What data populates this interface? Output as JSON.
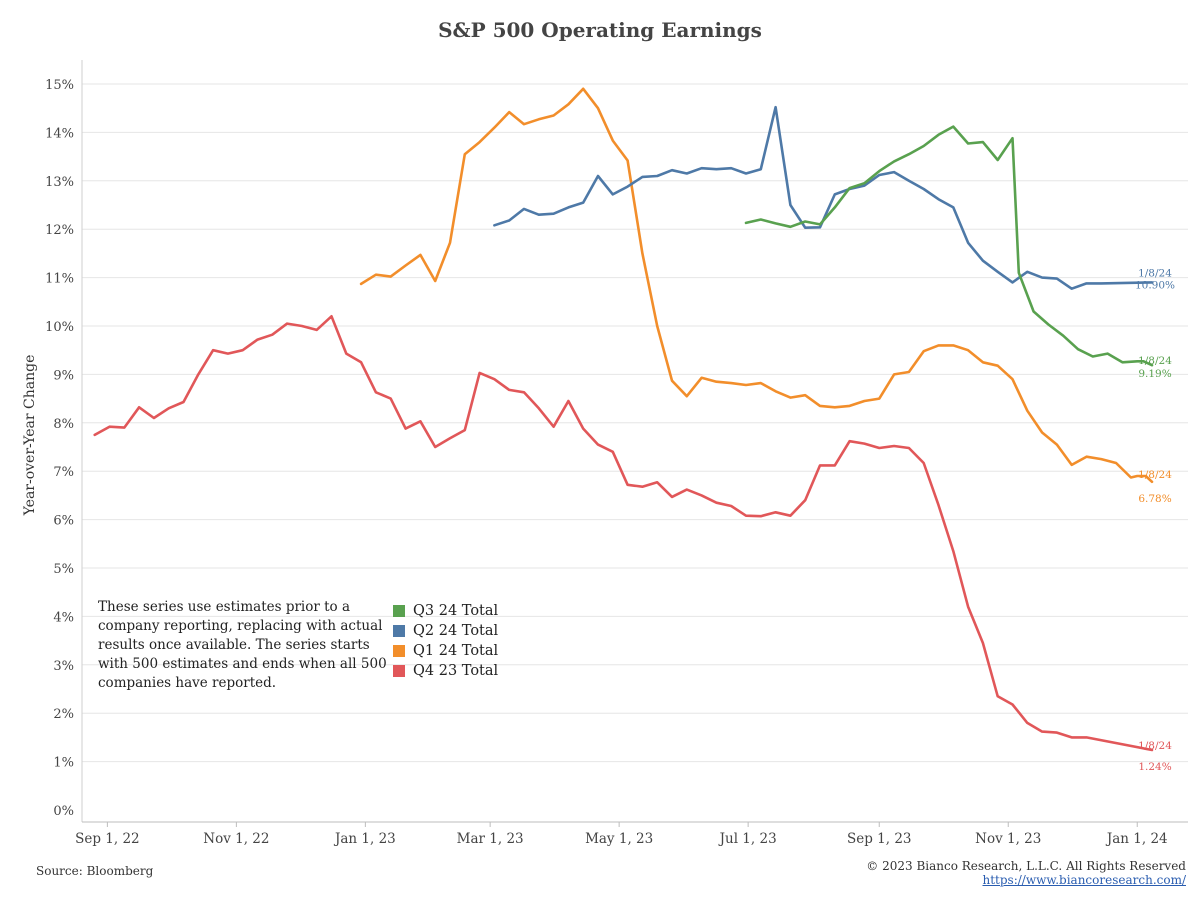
{
  "chart_data": {
    "type": "line",
    "title": "S&P 500 Operating Earnings",
    "ylabel": "Year-over-Year Change",
    "xlabel": "",
    "ylim": [
      0,
      15
    ],
    "xlim": [
      "2022-08-20",
      "2024-01-25"
    ],
    "y_ticks": [
      "0%",
      "1%",
      "2%",
      "3%",
      "4%",
      "5%",
      "6%",
      "7%",
      "8%",
      "9%",
      "10%",
      "11%",
      "12%",
      "13%",
      "14%",
      "15%"
    ],
    "x_ticks": [
      {
        "date": "2022-09-01",
        "label": "Sep 1, 22"
      },
      {
        "date": "2022-11-01",
        "label": "Nov 1, 22"
      },
      {
        "date": "2023-01-01",
        "label": "Jan 1, 23"
      },
      {
        "date": "2023-03-01",
        "label": "Mar 1, 23"
      },
      {
        "date": "2023-05-01",
        "label": "May 1, 23"
      },
      {
        "date": "2023-07-01",
        "label": "Jul 1, 23"
      },
      {
        "date": "2023-09-01",
        "label": "Sep 1, 23"
      },
      {
        "date": "2023-11-01",
        "label": "Nov 1, 23"
      },
      {
        "date": "2024-01-01",
        "label": "Jan 1, 24"
      }
    ],
    "grid": true,
    "series": [
      {
        "name": "Q3 24 Total",
        "color": "#59a14f",
        "end_label": {
          "date": "1/8/24",
          "value": "9.19%"
        },
        "points": [
          [
            "2023-06-30",
            12.13
          ],
          [
            "2023-07-07",
            12.2
          ],
          [
            "2023-07-14",
            12.12
          ],
          [
            "2023-07-21",
            12.05
          ],
          [
            "2023-07-28",
            12.16
          ],
          [
            "2023-08-04",
            12.1
          ],
          [
            "2023-08-11",
            12.45
          ],
          [
            "2023-08-18",
            12.85
          ],
          [
            "2023-08-25",
            12.95
          ],
          [
            "2023-09-01",
            13.2
          ],
          [
            "2023-09-08",
            13.4
          ],
          [
            "2023-09-15",
            13.55
          ],
          [
            "2023-09-22",
            13.72
          ],
          [
            "2023-09-29",
            13.95
          ],
          [
            "2023-10-06",
            14.12
          ],
          [
            "2023-10-13",
            13.77
          ],
          [
            "2023-10-20",
            13.8
          ],
          [
            "2023-10-27",
            13.43
          ],
          [
            "2023-11-03",
            13.88
          ],
          [
            "2023-11-06",
            11.1
          ],
          [
            "2023-11-13",
            10.3
          ],
          [
            "2023-11-20",
            10.03
          ],
          [
            "2023-11-27",
            9.8
          ],
          [
            "2023-12-04",
            9.52
          ],
          [
            "2023-12-11",
            9.37
          ],
          [
            "2023-12-18",
            9.43
          ],
          [
            "2023-12-25",
            9.25
          ],
          [
            "2024-01-01",
            9.27
          ],
          [
            "2024-01-04",
            9.27
          ],
          [
            "2024-01-08",
            9.19
          ]
        ]
      },
      {
        "name": "Q2 24 Total",
        "color": "#4e79a7",
        "end_label": {
          "date": "1/8/24",
          "value": "10.90%"
        },
        "points": [
          [
            "2023-03-03",
            12.08
          ],
          [
            "2023-03-10",
            12.18
          ],
          [
            "2023-03-17",
            12.42
          ],
          [
            "2023-03-24",
            12.3
          ],
          [
            "2023-03-31",
            12.32
          ],
          [
            "2023-04-07",
            12.45
          ],
          [
            "2023-04-14",
            12.55
          ],
          [
            "2023-04-21",
            13.1
          ],
          [
            "2023-04-28",
            12.72
          ],
          [
            "2023-05-05",
            12.88
          ],
          [
            "2023-05-12",
            13.08
          ],
          [
            "2023-05-19",
            13.1
          ],
          [
            "2023-05-26",
            13.22
          ],
          [
            "2023-06-02",
            13.15
          ],
          [
            "2023-06-09",
            13.26
          ],
          [
            "2023-06-16",
            13.24
          ],
          [
            "2023-06-23",
            13.26
          ],
          [
            "2023-06-30",
            13.15
          ],
          [
            "2023-07-07",
            13.24
          ],
          [
            "2023-07-14",
            14.52
          ],
          [
            "2023-07-21",
            12.5
          ],
          [
            "2023-07-28",
            12.03
          ],
          [
            "2023-08-04",
            12.04
          ],
          [
            "2023-08-11",
            12.72
          ],
          [
            "2023-08-18",
            12.83
          ],
          [
            "2023-08-25",
            12.9
          ],
          [
            "2023-09-01",
            13.12
          ],
          [
            "2023-09-08",
            13.18
          ],
          [
            "2023-09-15",
            13.0
          ],
          [
            "2023-09-22",
            12.83
          ],
          [
            "2023-09-29",
            12.62
          ],
          [
            "2023-10-06",
            12.45
          ],
          [
            "2023-10-13",
            11.72
          ],
          [
            "2023-10-20",
            11.35
          ],
          [
            "2023-10-27",
            11.12
          ],
          [
            "2023-11-03",
            10.9
          ],
          [
            "2023-11-10",
            11.12
          ],
          [
            "2023-11-17",
            11.0
          ],
          [
            "2023-11-24",
            10.98
          ],
          [
            "2023-12-01",
            10.77
          ],
          [
            "2023-12-08",
            10.88
          ],
          [
            "2023-12-15",
            10.88
          ],
          [
            "2024-01-08",
            10.9
          ]
        ]
      },
      {
        "name": "Q1 24 Total",
        "color": "#f28e2b",
        "end_label": {
          "date": "1/8/24",
          "value": "6.78%"
        },
        "points": [
          [
            "2022-12-30",
            10.87
          ],
          [
            "2023-01-06",
            11.06
          ],
          [
            "2023-01-13",
            11.02
          ],
          [
            "2023-01-20",
            11.25
          ],
          [
            "2023-01-27",
            11.47
          ],
          [
            "2023-02-03",
            10.93
          ],
          [
            "2023-02-10",
            11.72
          ],
          [
            "2023-02-17",
            13.55
          ],
          [
            "2023-02-24",
            13.8
          ],
          [
            "2023-03-03",
            14.1
          ],
          [
            "2023-03-10",
            14.42
          ],
          [
            "2023-03-17",
            14.17
          ],
          [
            "2023-03-24",
            14.27
          ],
          [
            "2023-03-31",
            14.35
          ],
          [
            "2023-04-07",
            14.58
          ],
          [
            "2023-04-14",
            14.9
          ],
          [
            "2023-04-21",
            14.5
          ],
          [
            "2023-04-28",
            13.83
          ],
          [
            "2023-05-05",
            13.42
          ],
          [
            "2023-05-12",
            11.5
          ],
          [
            "2023-05-19",
            10.0
          ],
          [
            "2023-05-26",
            8.87
          ],
          [
            "2023-06-02",
            8.55
          ],
          [
            "2023-06-09",
            8.93
          ],
          [
            "2023-06-16",
            8.85
          ],
          [
            "2023-06-23",
            8.82
          ],
          [
            "2023-06-30",
            8.78
          ],
          [
            "2023-07-07",
            8.82
          ],
          [
            "2023-07-14",
            8.65
          ],
          [
            "2023-07-21",
            8.52
          ],
          [
            "2023-07-28",
            8.57
          ],
          [
            "2023-08-04",
            8.35
          ],
          [
            "2023-08-11",
            8.32
          ],
          [
            "2023-08-18",
            8.35
          ],
          [
            "2023-08-25",
            8.45
          ],
          [
            "2023-09-01",
            8.5
          ],
          [
            "2023-09-08",
            9.0
          ],
          [
            "2023-09-15",
            9.05
          ],
          [
            "2023-09-22",
            9.48
          ],
          [
            "2023-09-29",
            9.6
          ],
          [
            "2023-10-06",
            9.6
          ],
          [
            "2023-10-13",
            9.5
          ],
          [
            "2023-10-20",
            9.25
          ],
          [
            "2023-10-27",
            9.18
          ],
          [
            "2023-11-03",
            8.9
          ],
          [
            "2023-11-10",
            8.25
          ],
          [
            "2023-11-17",
            7.8
          ],
          [
            "2023-11-24",
            7.55
          ],
          [
            "2023-12-01",
            7.13
          ],
          [
            "2023-12-08",
            7.3
          ],
          [
            "2023-12-15",
            7.25
          ],
          [
            "2023-12-22",
            7.17
          ],
          [
            "2023-12-29",
            6.87
          ],
          [
            "2024-01-01",
            6.9
          ],
          [
            "2024-01-05",
            6.9
          ],
          [
            "2024-01-08",
            6.78
          ]
        ]
      },
      {
        "name": "Q4 23 Total",
        "color": "#e15759",
        "end_label": {
          "date": "1/8/24",
          "value": "1.24%"
        },
        "points": [
          [
            "2022-08-26",
            7.75
          ],
          [
            "2022-09-02",
            7.92
          ],
          [
            "2022-09-09",
            7.9
          ],
          [
            "2022-09-16",
            8.32
          ],
          [
            "2022-09-23",
            8.1
          ],
          [
            "2022-09-30",
            8.3
          ],
          [
            "2022-10-07",
            8.43
          ],
          [
            "2022-10-14",
            9.0
          ],
          [
            "2022-10-21",
            9.5
          ],
          [
            "2022-10-28",
            9.43
          ],
          [
            "2022-11-04",
            9.5
          ],
          [
            "2022-11-11",
            9.72
          ],
          [
            "2022-11-18",
            9.82
          ],
          [
            "2022-11-25",
            10.05
          ],
          [
            "2022-12-02",
            10.0
          ],
          [
            "2022-12-09",
            9.92
          ],
          [
            "2022-12-16",
            10.2
          ],
          [
            "2022-12-23",
            9.43
          ],
          [
            "2022-12-30",
            9.25
          ],
          [
            "2023-01-06",
            8.63
          ],
          [
            "2023-01-13",
            8.5
          ],
          [
            "2023-01-20",
            7.88
          ],
          [
            "2023-01-27",
            8.03
          ],
          [
            "2023-02-03",
            7.5
          ],
          [
            "2023-02-10",
            7.68
          ],
          [
            "2023-02-17",
            7.85
          ],
          [
            "2023-02-24",
            9.03
          ],
          [
            "2023-03-03",
            8.9
          ],
          [
            "2023-03-10",
            8.68
          ],
          [
            "2023-03-17",
            8.63
          ],
          [
            "2023-03-24",
            8.3
          ],
          [
            "2023-03-31",
            7.92
          ],
          [
            "2023-04-07",
            8.45
          ],
          [
            "2023-04-14",
            7.88
          ],
          [
            "2023-04-21",
            7.55
          ],
          [
            "2023-04-28",
            7.4
          ],
          [
            "2023-05-05",
            6.72
          ],
          [
            "2023-05-12",
            6.68
          ],
          [
            "2023-05-19",
            6.77
          ],
          [
            "2023-05-26",
            6.47
          ],
          [
            "2023-06-02",
            6.62
          ],
          [
            "2023-06-09",
            6.5
          ],
          [
            "2023-06-16",
            6.35
          ],
          [
            "2023-06-23",
            6.28
          ],
          [
            "2023-06-30",
            6.08
          ],
          [
            "2023-07-07",
            6.07
          ],
          [
            "2023-07-14",
            6.15
          ],
          [
            "2023-07-21",
            6.08
          ],
          [
            "2023-07-28",
            6.4
          ],
          [
            "2023-08-04",
            7.12
          ],
          [
            "2023-08-11",
            7.12
          ],
          [
            "2023-08-18",
            7.62
          ],
          [
            "2023-08-25",
            7.57
          ],
          [
            "2023-09-01",
            7.48
          ],
          [
            "2023-09-08",
            7.52
          ],
          [
            "2023-09-15",
            7.48
          ],
          [
            "2023-09-22",
            7.17
          ],
          [
            "2023-09-29",
            6.3
          ],
          [
            "2023-10-06",
            5.35
          ],
          [
            "2023-10-13",
            4.2
          ],
          [
            "2023-10-20",
            3.45
          ],
          [
            "2023-10-27",
            2.35
          ],
          [
            "2023-11-03",
            2.18
          ],
          [
            "2023-11-10",
            1.8
          ],
          [
            "2023-11-17",
            1.62
          ],
          [
            "2023-11-24",
            1.6
          ],
          [
            "2023-12-01",
            1.5
          ],
          [
            "2023-12-08",
            1.5
          ],
          [
            "2024-01-08",
            1.24
          ]
        ]
      }
    ]
  },
  "note": "These series use estimates prior to a company reporting, replacing with actual results once available. The series starts with 500 estimates and ends when all 500 companies have reported.",
  "legend": [
    {
      "label": "Q3 24 Total",
      "color": "#59a14f"
    },
    {
      "label": "Q2 24 Total",
      "color": "#4e79a7"
    },
    {
      "label": "Q1 24 Total",
      "color": "#f28e2b"
    },
    {
      "label": "Q4 23 Total",
      "color": "#e15759"
    }
  ],
  "footer": {
    "source": "Source: Bloomberg",
    "copyright": "© 2023 Bianco Research, L.L.C. All Rights Reserved",
    "url": "https://www.biancoresearch.com/"
  }
}
